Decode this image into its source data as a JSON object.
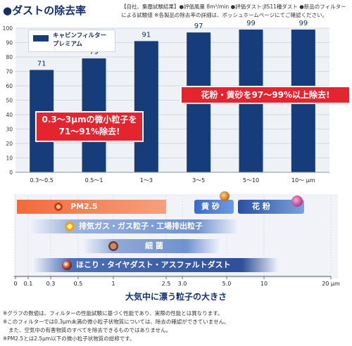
{
  "header": {
    "title": "●ダストの除去率",
    "note": "【自社、集塵試験結果】●評価風量 8m³/min ●評価ダスト:JIS11種ダスト ●新品のフィルターによる試験値 ※各製品の除去率の詳細は、ボッシュホームページにてご確認ください。"
  },
  "legend": {
    "label_line1": "キャビンフィルター",
    "label_line2": "プレミアム"
  },
  "chart_data": {
    "type": "bar",
    "categories": [
      "0.3〜0.5",
      "0.5〜1",
      "1〜3",
      "3〜5",
      "5〜10",
      "10〜 μm"
    ],
    "series": [
      {
        "name": "キャビンフィルター プレミアム",
        "values": [
          71,
          79,
          91,
          97,
          99,
          99
        ]
      }
    ],
    "data_labels": [
      "71",
      "79",
      "91",
      "97",
      "99",
      "99"
    ],
    "ylim": [
      0,
      100
    ],
    "yticks": [
      "0",
      "10",
      "20",
      "30",
      "40",
      "50",
      "60",
      "70",
      "80",
      "90",
      "100"
    ],
    "grid": true,
    "bar_color": "#163d7a",
    "particle_axis": {
      "ticks": [
        "0",
        "0.1",
        "0.3",
        "0.5",
        "1",
        "2.5",
        "3.0",
        "5.0",
        "10",
        "20 μm"
      ],
      "xlabel": "大気中に漂う粒子の大きさ"
    }
  },
  "callouts": {
    "small": {
      "line1": "0.3〜3μmの微小粒子を",
      "line2": "71〜91%除去!"
    },
    "large": "花粉・黄砂を97〜99%以上除去!"
  },
  "particles": {
    "pm25": "PM2.5",
    "kosa": "黄 砂",
    "kafun": "花 粉",
    "haiki": "排気ガス・ガス粒子・工場排出粒子",
    "saikin": "細 菌",
    "hokori": "ほこり・タイヤダスト・アスファルトダスト"
  },
  "footnotes": {
    "line1": "※グラフの数値は、フィルターの性能試験に基づく性能であり、実際の性能とは異なります。",
    "line2": "※このフィルターでは0.3μm未満の微小粒子状物質については、除去の確認ができていません。",
    "line3": "また、空気中の有害物質のすべてを除去できるものではありません。",
    "line4": "※PM2.5とは2.5μm以下の微小粒子状物質の総称です。"
  },
  "colors": {
    "bar": "#163d7a",
    "callout": "#e4242f",
    "pm25": "#f26a3a",
    "axis_text": "#12306a"
  }
}
